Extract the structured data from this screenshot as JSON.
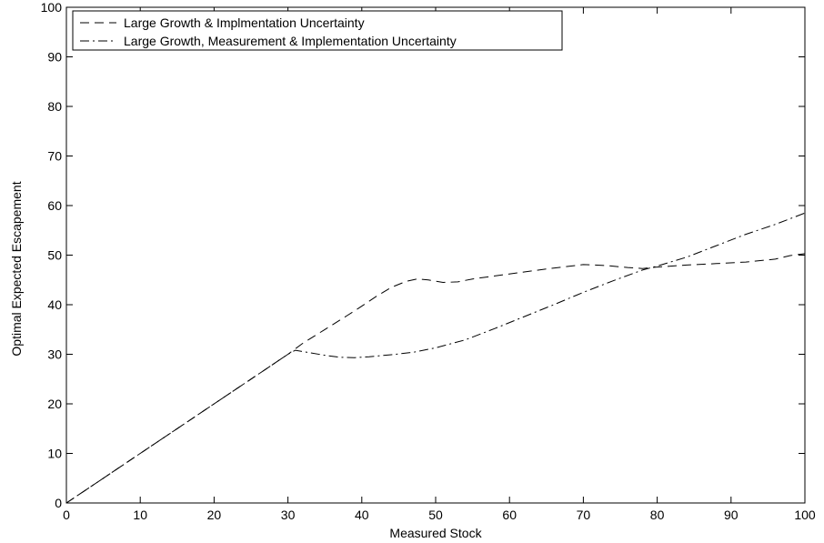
{
  "chart_data": {
    "type": "line",
    "title": "",
    "xlabel": "Measured Stock",
    "ylabel": "Optimal Expected Escapement",
    "xlim": [
      0,
      100
    ],
    "ylim": [
      0,
      100
    ],
    "xticks": [
      "0",
      "10",
      "20",
      "30",
      "40",
      "50",
      "60",
      "70",
      "80",
      "90",
      "100"
    ],
    "yticks": [
      "0",
      "10",
      "20",
      "30",
      "40",
      "50",
      "60",
      "70",
      "80",
      "90",
      "100"
    ],
    "grid": false,
    "legend_position": "top-left",
    "series": [
      {
        "name": "Large Growth & Implmentation Uncertainty",
        "style": "dashed",
        "color": "#000000",
        "points": [
          [
            0,
            0
          ],
          [
            5,
            5
          ],
          [
            10,
            10
          ],
          [
            15,
            15
          ],
          [
            20,
            20
          ],
          [
            25,
            25
          ],
          [
            30,
            30
          ],
          [
            32,
            32.2
          ],
          [
            35,
            35
          ],
          [
            38,
            37.8
          ],
          [
            40,
            39.7
          ],
          [
            42,
            41.7
          ],
          [
            44,
            43.5
          ],
          [
            46,
            44.7
          ],
          [
            47.5,
            45.2
          ],
          [
            49,
            45
          ],
          [
            51,
            44.5
          ],
          [
            53,
            44.6
          ],
          [
            55,
            45.2
          ],
          [
            58,
            45.8
          ],
          [
            62,
            46.6
          ],
          [
            66,
            47.4
          ],
          [
            70,
            48.1
          ],
          [
            73,
            47.9
          ],
          [
            76,
            47.5
          ],
          [
            78,
            47.3
          ],
          [
            80,
            47.6
          ],
          [
            84,
            48
          ],
          [
            88,
            48.3
          ],
          [
            92,
            48.6
          ],
          [
            96,
            49.2
          ],
          [
            98,
            49.9
          ],
          [
            100,
            50.3
          ]
        ]
      },
      {
        "name": "Large Growth, Measurement & Implementation Uncertainty",
        "style": "dashdot",
        "color": "#000000",
        "points": [
          [
            0,
            0
          ],
          [
            5,
            5
          ],
          [
            10,
            10
          ],
          [
            15,
            15
          ],
          [
            20,
            20
          ],
          [
            25,
            25
          ],
          [
            30,
            30
          ],
          [
            31,
            30.8
          ],
          [
            33,
            30.3
          ],
          [
            35,
            29.8
          ],
          [
            37,
            29.4
          ],
          [
            39,
            29.3
          ],
          [
            41,
            29.5
          ],
          [
            44,
            29.9
          ],
          [
            47,
            30.4
          ],
          [
            50,
            31.3
          ],
          [
            54,
            32.9
          ],
          [
            58,
            35.2
          ],
          [
            62,
            37.6
          ],
          [
            66,
            40
          ],
          [
            70,
            42.5
          ],
          [
            74,
            44.8
          ],
          [
            78,
            47
          ],
          [
            80,
            47.8
          ],
          [
            84,
            49.6
          ],
          [
            88,
            51.9
          ],
          [
            92,
            54.2
          ],
          [
            96,
            56.2
          ],
          [
            100,
            58.5
          ]
        ]
      }
    ]
  }
}
